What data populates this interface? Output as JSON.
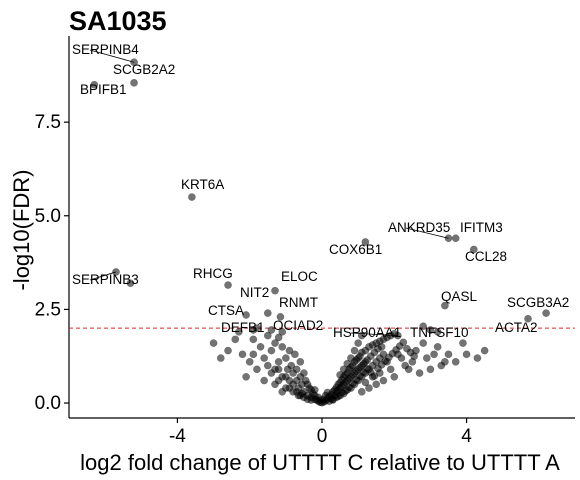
{
  "chart_data": {
    "type": "scatter",
    "title": "SA1035",
    "xlabel": "log2 fold change of UTTTT C relative to UTTTT A",
    "ylabel": "-log10(FDR)",
    "xlim": [
      -7,
      7
    ],
    "ylim": [
      -0.4,
      9.8
    ],
    "x_ticks": [
      -4,
      0,
      4
    ],
    "x_tick_labels": [
      "-4",
      "0",
      "4"
    ],
    "y_ticks": [
      0,
      2.5,
      5,
      7.5
    ],
    "y_tick_labels": [
      "0.0",
      "2.5",
      "5.0",
      "7.5"
    ],
    "threshold": {
      "y": 2.0,
      "color": "#d62728",
      "style": "dashed"
    },
    "grid": false,
    "point_color": "#000000",
    "point_opacity": 0.55,
    "labeled_points": [
      {
        "label": "SERPINB4",
        "x": -5.2,
        "y": 9.1
      },
      {
        "label": "SCGB2A2",
        "x": -5.2,
        "y": 8.55
      },
      {
        "label": "BPIFB1",
        "x": -6.3,
        "y": 8.5
      },
      {
        "label": "KRT6A",
        "x": -3.6,
        "y": 5.5
      },
      {
        "label": "SERPINB3",
        "x": -5.7,
        "y": 3.5
      },
      {
        "label": "RHCG",
        "x": -2.6,
        "y": 3.15
      },
      {
        "label": "NIT2",
        "x": -1.5,
        "y": 2.4
      },
      {
        "label": "ELOC",
        "x": -1.3,
        "y": 3.0
      },
      {
        "label": "CTSA",
        "x": -2.1,
        "y": 2.35
      },
      {
        "label": "RNMT",
        "x": -1.15,
        "y": 2.3
      },
      {
        "label": "DEFB1",
        "x": -1.9,
        "y": 1.95
      },
      {
        "label": "OCIAD2",
        "x": -1.1,
        "y": 1.9
      },
      {
        "label": "COX6B1",
        "x": 1.2,
        "y": 4.3
      },
      {
        "label": "ANKRD35",
        "x": 3.5,
        "y": 4.4
      },
      {
        "label": "IFITM3",
        "x": 3.7,
        "y": 4.4
      },
      {
        "label": "CCL28",
        "x": 4.2,
        "y": 4.1
      },
      {
        "label": "QASL",
        "x": 3.4,
        "y": 2.6
      },
      {
        "label": "SCGB3A2",
        "x": 6.2,
        "y": 2.4
      },
      {
        "label": "ACTA2",
        "x": 5.7,
        "y": 2.25
      },
      {
        "label": "HSP90AA1",
        "x": 2.1,
        "y": 1.8
      },
      {
        "label": "TNFSF10",
        "x": 3.2,
        "y": 1.9
      }
    ],
    "points": [
      [
        -5.3,
        3.2
      ],
      [
        -3.0,
        1.6
      ],
      [
        -2.8,
        1.2
      ],
      [
        -2.6,
        1.4
      ],
      [
        -2.3,
        1.9
      ],
      [
        -2.2,
        1.3
      ],
      [
        -2.1,
        0.7
      ],
      [
        -2.0,
        1.1
      ],
      [
        -1.9,
        1.7
      ],
      [
        -1.8,
        0.9
      ],
      [
        -1.7,
        1.5
      ],
      [
        -1.6,
        1.2
      ],
      [
        -1.6,
        0.6
      ],
      [
        -1.5,
        1.8
      ],
      [
        -1.5,
        1.0
      ],
      [
        -1.4,
        0.8
      ],
      [
        -1.4,
        1.4
      ],
      [
        -1.3,
        1.6
      ],
      [
        -1.3,
        0.5
      ],
      [
        -1.2,
        1.1
      ],
      [
        -1.2,
        0.9
      ],
      [
        -1.1,
        1.5
      ],
      [
        -1.1,
        0.7
      ],
      [
        -1.0,
        1.2
      ],
      [
        -1.0,
        0.4
      ],
      [
        -0.95,
        0.9
      ],
      [
        -0.9,
        1.4
      ],
      [
        -0.9,
        0.6
      ],
      [
        -0.85,
        1.0
      ],
      [
        -0.8,
        0.8
      ],
      [
        -0.8,
        0.3
      ],
      [
        -0.75,
        1.3
      ],
      [
        -0.7,
        0.6
      ],
      [
        -0.7,
        0.9
      ],
      [
        -0.65,
        0.4
      ],
      [
        -0.6,
        0.7
      ],
      [
        -0.6,
        1.1
      ],
      [
        -0.55,
        0.5
      ],
      [
        -0.5,
        0.3
      ],
      [
        -0.5,
        0.8
      ],
      [
        -0.45,
        0.6
      ],
      [
        -0.4,
        0.2
      ],
      [
        -0.4,
        0.5
      ],
      [
        -0.35,
        0.4
      ],
      [
        -0.3,
        0.15
      ],
      [
        -0.3,
        0.35
      ],
      [
        -0.25,
        0.25
      ],
      [
        -0.2,
        0.1
      ],
      [
        -0.2,
        0.2
      ],
      [
        -0.15,
        0.08
      ],
      [
        -0.1,
        0.05
      ],
      [
        -0.05,
        0.02
      ],
      [
        0.0,
        0.01
      ],
      [
        0.05,
        0.03
      ],
      [
        0.1,
        0.06
      ],
      [
        0.15,
        0.12
      ],
      [
        0.2,
        0.18
      ],
      [
        0.25,
        0.22
      ],
      [
        0.3,
        0.3
      ],
      [
        0.35,
        0.35
      ],
      [
        0.4,
        0.42
      ],
      [
        0.45,
        0.5
      ],
      [
        0.5,
        0.55
      ],
      [
        0.55,
        0.62
      ],
      [
        0.6,
        0.7
      ],
      [
        0.65,
        0.75
      ],
      [
        0.7,
        0.8
      ],
      [
        0.75,
        0.9
      ],
      [
        0.8,
        0.95
      ],
      [
        0.85,
        1.0
      ],
      [
        0.9,
        1.1
      ],
      [
        0.95,
        1.15
      ],
      [
        1.0,
        1.2
      ],
      [
        1.05,
        1.25
      ],
      [
        1.1,
        1.35
      ],
      [
        1.2,
        1.4
      ],
      [
        1.3,
        1.5
      ],
      [
        1.4,
        1.55
      ],
      [
        1.5,
        1.6
      ],
      [
        1.6,
        1.65
      ],
      [
        1.7,
        1.7
      ],
      [
        1.8,
        1.75
      ],
      [
        1.9,
        1.8
      ],
      [
        2.0,
        1.85
      ],
      [
        0.3,
        0.1
      ],
      [
        0.4,
        0.15
      ],
      [
        0.5,
        0.2
      ],
      [
        0.6,
        0.25
      ],
      [
        0.7,
        0.35
      ],
      [
        0.8,
        0.4
      ],
      [
        0.9,
        0.5
      ],
      [
        1.0,
        0.6
      ],
      [
        1.1,
        0.7
      ],
      [
        1.2,
        0.8
      ],
      [
        1.3,
        0.9
      ],
      [
        1.4,
        1.0
      ],
      [
        1.5,
        1.1
      ],
      [
        1.6,
        1.2
      ],
      [
        1.7,
        1.3
      ],
      [
        0.5,
        0.4
      ],
      [
        0.6,
        0.5
      ],
      [
        0.7,
        0.6
      ],
      [
        0.8,
        0.7
      ],
      [
        0.9,
        0.8
      ],
      [
        1.0,
        0.9
      ],
      [
        1.1,
        1.0
      ],
      [
        1.2,
        1.1
      ],
      [
        0.4,
        0.3
      ],
      [
        0.35,
        0.2
      ],
      [
        0.45,
        0.35
      ],
      [
        0.55,
        0.45
      ],
      [
        0.65,
        0.55
      ],
      [
        0.75,
        0.65
      ],
      [
        0.85,
        0.75
      ],
      [
        0.95,
        0.85
      ],
      [
        1.05,
        0.95
      ],
      [
        1.15,
        1.05
      ],
      [
        1.25,
        1.15
      ],
      [
        1.35,
        1.25
      ],
      [
        1.45,
        1.35
      ],
      [
        1.55,
        1.45
      ],
      [
        1.65,
        1.5
      ],
      [
        2.1,
        1.3
      ],
      [
        2.2,
        1.2
      ],
      [
        2.3,
        1.0
      ],
      [
        2.4,
        0.9
      ],
      [
        2.5,
        1.1
      ],
      [
        2.6,
        1.4
      ],
      [
        2.7,
        0.8
      ],
      [
        2.8,
        1.6
      ],
      [
        2.9,
        1.2
      ],
      [
        3.0,
        0.9
      ],
      [
        3.1,
        1.3
      ],
      [
        3.2,
        1.5
      ],
      [
        3.3,
        1.0
      ],
      [
        3.4,
        1.1
      ],
      [
        3.5,
        1.3
      ],
      [
        3.7,
        1.1
      ],
      [
        3.9,
        1.6
      ],
      [
        4.0,
        1.3
      ],
      [
        4.3,
        1.2
      ],
      [
        4.5,
        1.4
      ],
      [
        1.8,
        1.1
      ],
      [
        1.9,
        0.9
      ],
      [
        2.0,
        0.7
      ],
      [
        1.7,
        0.6
      ],
      [
        1.6,
        0.8
      ],
      [
        1.5,
        0.5
      ],
      [
        1.4,
        0.7
      ],
      [
        1.3,
        0.4
      ],
      [
        1.2,
        0.55
      ],
      [
        1.1,
        0.3
      ],
      [
        -0.6,
        0.2
      ],
      [
        -0.7,
        0.3
      ],
      [
        -0.8,
        0.5
      ],
      [
        -0.9,
        0.4
      ],
      [
        -1.0,
        0.7
      ],
      [
        -1.1,
        0.3
      ],
      [
        -1.2,
        0.6
      ],
      [
        -1.3,
        0.9
      ],
      [
        -0.5,
        0.15
      ],
      [
        -0.4,
        0.1
      ],
      [
        -0.3,
        0.08
      ],
      [
        -0.55,
        0.25
      ],
      [
        -0.65,
        0.2
      ],
      [
        0.2,
        0.05
      ],
      [
        0.3,
        0.08
      ],
      [
        0.25,
        0.12
      ],
      [
        0.45,
        0.18
      ],
      [
        0.55,
        0.28
      ],
      [
        0.65,
        0.32
      ],
      [
        0.75,
        0.42
      ],
      [
        0.85,
        0.52
      ],
      [
        0.95,
        0.62
      ],
      [
        1.05,
        0.72
      ],
      [
        1.15,
        0.82
      ],
      [
        1.25,
        0.92
      ],
      [
        1.35,
        0.82
      ],
      [
        1.45,
        0.72
      ],
      [
        1.55,
        0.92
      ],
      [
        1.65,
        1.02
      ],
      [
        1.75,
        1.12
      ],
      [
        1.85,
        1.22
      ],
      [
        1.95,
        1.32
      ],
      [
        2.05,
        1.42
      ],
      [
        2.15,
        1.52
      ],
      [
        2.25,
        1.62
      ],
      [
        2.35,
        1.45
      ],
      [
        2.45,
        1.35
      ],
      [
        2.55,
        1.25
      ],
      [
        -1.8,
        2.0
      ],
      [
        -1.4,
        1.95
      ],
      [
        2.8,
        2.05
      ],
      [
        3.0,
        1.95
      ],
      [
        -2.4,
        1.7
      ],
      [
        -1.9,
        1.3
      ],
      [
        -1.2,
        1.75
      ],
      [
        0.9,
        1.4
      ],
      [
        1.0,
        1.6
      ],
      [
        1.1,
        1.8
      ],
      [
        -0.2,
        0.35
      ],
      [
        -0.1,
        0.15
      ],
      [
        0.1,
        0.2
      ],
      [
        0.15,
        0.28
      ],
      [
        0.05,
        0.1
      ],
      [
        -0.05,
        0.08
      ],
      [
        0.6,
        0.9
      ],
      [
        0.7,
        1.05
      ],
      [
        0.8,
        1.2
      ],
      [
        0.5,
        0.75
      ]
    ]
  }
}
